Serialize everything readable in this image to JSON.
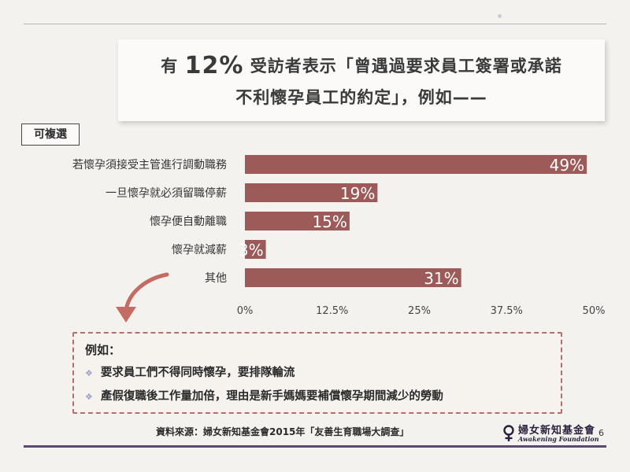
{
  "headline": {
    "line1_pre": "有 ",
    "line1_big": "12%",
    "line1_post": " 受訪者表示「曾遇過要求員工簽署或承諾",
    "line2": "不利懷孕員工的約定」，例如——"
  },
  "tag": "可複選",
  "chart_data": {
    "type": "bar",
    "orientation": "horizontal",
    "categories": [
      "若懷孕須接受主管進行調動職務",
      "一旦懷孕就必須留職停薪",
      "懷孕便自動離職",
      "懷孕就減薪",
      "其他"
    ],
    "values": [
      49,
      19,
      15,
      3,
      31
    ],
    "value_labels": [
      "49%",
      "19%",
      "15%",
      "3%",
      "31%"
    ],
    "xlim": [
      0,
      50
    ],
    "xticks": [
      0,
      12.5,
      25,
      37.5,
      50
    ],
    "xtick_labels": [
      "0%",
      "12.5%",
      "25%",
      "37.5%",
      "50%"
    ],
    "bar_color": "#9c5a59",
    "grid": false
  },
  "examples": {
    "title": "例如：",
    "items": [
      "要求員工們不得同時懷孕，要排隊輪流",
      "產假復職後工作量加倍，理由是新手媽媽要補償懷孕期間減少的勞動"
    ]
  },
  "source": "資料來源：婦女新知基金會2015年「友善生育職場大調查」",
  "logo": {
    "cn": "婦女新知基金會",
    "en": "Awakening Foundation"
  },
  "page_number": "6",
  "colors": {
    "accent": "#9c5a59",
    "arrow": "#c46b63",
    "rule": "#5b4a6e"
  }
}
